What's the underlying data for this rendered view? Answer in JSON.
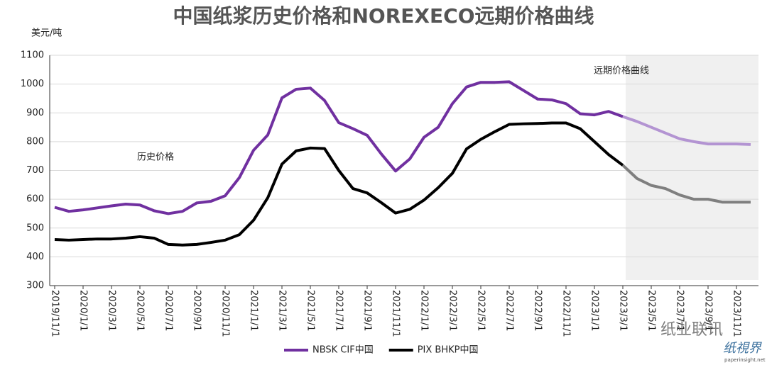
{
  "chart_data": {
    "type": "line",
    "title": "中国纸浆历史价格和NOREXECO远期价格曲线",
    "y_label": "美元/吨",
    "annotations": [
      "历史价格",
      "远期价格曲线"
    ],
    "forecast_from": "2023/3/1",
    "categories": [
      "2019/11/1",
      null,
      "2020/1/1",
      null,
      "2020/3/1",
      null,
      "2020/5/1",
      null,
      "2020/7/1",
      null,
      "2020/9/1",
      null,
      "2020/11/1",
      null,
      "2021/1/1",
      null,
      "2021/3/1",
      null,
      "2021/5/1",
      null,
      "2021/7/1",
      null,
      "2021/9/1",
      null,
      "2021/11/1",
      null,
      "2022/1/1",
      null,
      "2022/3/1",
      null,
      "2022/5/1",
      null,
      "2022/7/1",
      null,
      "2022/9/1",
      null,
      "2022/11/1",
      null,
      "2023/1/1",
      null,
      "2023/3/1",
      null,
      "2023/5/1",
      null,
      "2023/7/1",
      null,
      "2023/9/1",
      null,
      "2023/11/1",
      null
    ],
    "series": [
      {
        "name": "NBSK CIF中国",
        "color": "#7030a0",
        "forecast_color": "#b394d2",
        "values": [
          572,
          558,
          563,
          570,
          577,
          583,
          580,
          560,
          550,
          558,
          587,
          593,
          612,
          675,
          770,
          823,
          952,
          982,
          986,
          943,
          866,
          845,
          822,
          757,
          698,
          740,
          815,
          850,
          932,
          990,
          1006,
          1006,
          1008,
          978,
          948,
          945,
          932,
          897,
          893,
          905,
          887,
          870,
          850,
          830,
          810,
          800,
          792,
          792,
          792,
          790
        ]
      },
      {
        "name": "PIX BHKP中国",
        "color": "#000000",
        "forecast_color": "#7f7f7f",
        "values": [
          460,
          458,
          460,
          462,
          462,
          465,
          470,
          465,
          443,
          441,
          443,
          450,
          458,
          477,
          527,
          605,
          722,
          768,
          778,
          776,
          700,
          637,
          622,
          588,
          552,
          565,
          597,
          640,
          690,
          775,
          808,
          835,
          860,
          862,
          863,
          865,
          865,
          845,
          800,
          755,
          718,
          672,
          648,
          637,
          615,
          600,
          600,
          590,
          590,
          590
        ]
      }
    ],
    "ylim": [
      300,
      1100
    ],
    "yticks": [
      300,
      400,
      500,
      600,
      700,
      800,
      900,
      1000,
      1100
    ],
    "grid": true,
    "legend": "bottom",
    "watermark": [
      "纸业联讯",
      "纸視界",
      "paperinsight.net"
    ]
  }
}
